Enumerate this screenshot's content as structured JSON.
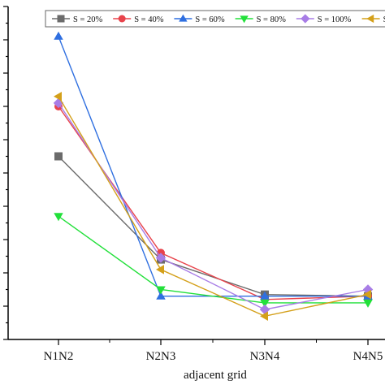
{
  "chart_data": {
    "type": "line",
    "xlabel": "adjacent grid",
    "ylabel": "",
    "categories": [
      "N1N2",
      "N2N3",
      "N3N4",
      "N4N5"
    ],
    "ylim": [
      0,
      100
    ],
    "y_ticks_labeled": false,
    "grid": false,
    "legend_placement": "top",
    "series": [
      {
        "name": "S = 20%",
        "marker": "square",
        "color": "#6b6b6b",
        "values": [
          55,
          24,
          13.5,
          13
        ]
      },
      {
        "name": "S = 40%",
        "marker": "circle",
        "color": "#e8434b",
        "values": [
          70,
          26,
          12,
          13
        ]
      },
      {
        "name": "S = 60%",
        "marker": "triangle-up",
        "color": "#2f6fe0",
        "values": [
          91,
          13,
          13,
          13
        ]
      },
      {
        "name": "S = 80%",
        "marker": "triangle-down",
        "color": "#22e03a",
        "values": [
          37,
          15,
          11,
          11
        ]
      },
      {
        "name": "S = 100%",
        "marker": "diamond",
        "color": "#a87de6",
        "values": [
          71,
          24.5,
          9,
          15
        ]
      },
      {
        "name": "S =",
        "marker": "triangle-left",
        "color": "#d4a01a",
        "values": [
          73,
          21,
          7,
          13.5
        ]
      }
    ]
  }
}
